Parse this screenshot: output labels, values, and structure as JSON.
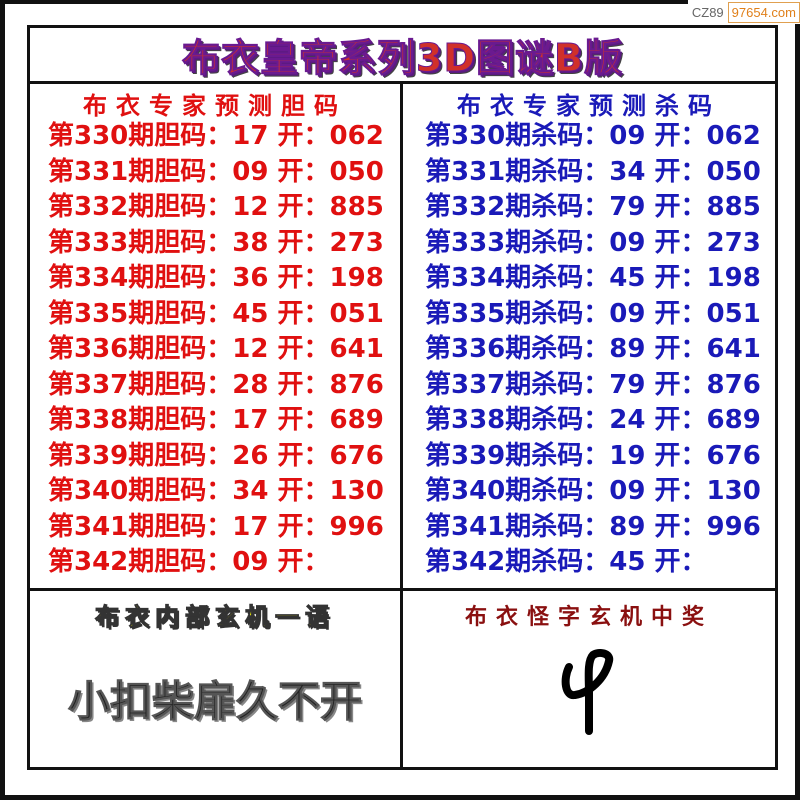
{
  "watermark": {
    "prefix": "CZ89",
    "site": "97654.com"
  },
  "title": "布衣皇帝系列3D图谜B版",
  "left": {
    "header": "布衣专家预测胆码",
    "rows": [
      "第330期胆码：17 开：062",
      "第331期胆码：09 开：050",
      "第332期胆码：12 开：885",
      "第333期胆码：38 开：273",
      "第334期胆码：36 开：198",
      "第335期胆码：45 开：051",
      "第336期胆码：12 开：641",
      "第337期胆码：28 开：876",
      "第338期胆码：17 开：689",
      "第339期胆码：26 开：676",
      "第340期胆码：34 开：130",
      "第341期胆码：17 开：996",
      "第342期胆码：09 开："
    ]
  },
  "right": {
    "header": "布衣专家预测杀码",
    "rows": [
      "第330期杀码：09 开：062",
      "第331期杀码：34 开：050",
      "第332期杀码：79 开：885",
      "第333期杀码：09 开：273",
      "第334期杀码：45 开：198",
      "第335期杀码：09 开：051",
      "第336期杀码：89 开：641",
      "第337期杀码：79 开：876",
      "第338期杀码：24 开：689",
      "第339期杀码：19 开：676",
      "第340期杀码：09 开：130",
      "第341期杀码：89 开：996",
      "第342期杀码：45 开："
    ]
  },
  "bottom_left": {
    "header": "布衣内部玄机一语",
    "phrase": "小扣柴扉久不开"
  },
  "bottom_right": {
    "header": "布衣怪字玄机中奖",
    "glyph": "ᖘ"
  }
}
